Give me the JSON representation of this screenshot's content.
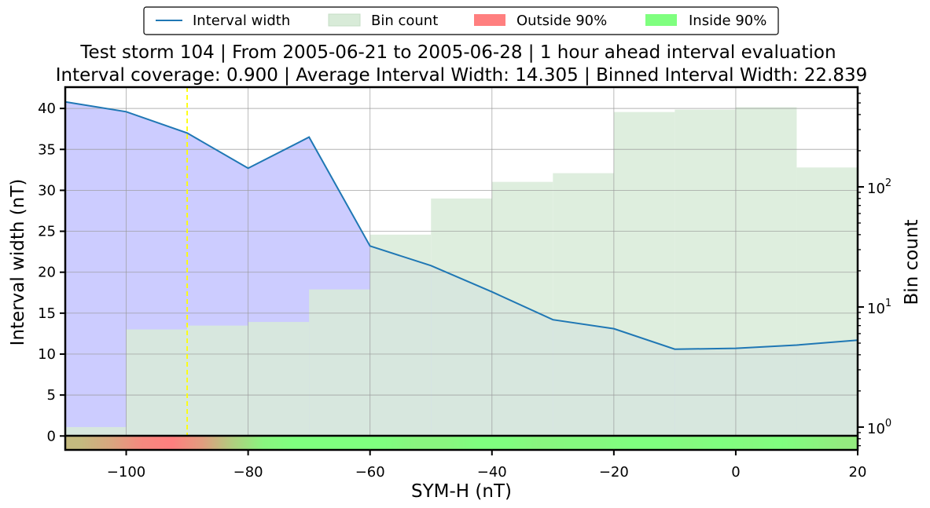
{
  "chart_data": {
    "type": "line",
    "title": "Test storm 104 | From 2005-06-21 to 2005-06-28 | 1 hour ahead interval evaluation",
    "subtitle": "Interval coverage: 0.900 | Average Interval Width: 14.305 | Binned Interval Width: 22.839",
    "xlabel": "SYM-H (nT)",
    "ylabel": "Interval width (nT)",
    "y2label": "Bin count",
    "xlim": [
      -110,
      20
    ],
    "ylim": [
      -1.7,
      42.6
    ],
    "y2lim_log10": [
      -0.19,
      2.83
    ],
    "y2scale": "log",
    "grid": true,
    "legend_position": "top-center",
    "x_ticks": [
      -100,
      -80,
      -60,
      -40,
      -20,
      0,
      20
    ],
    "x_tick_labels": [
      "−100",
      "−80",
      "−60",
      "−40",
      "−20",
      "0",
      "20"
    ],
    "y_ticks": [
      0,
      5,
      10,
      15,
      20,
      25,
      30,
      35,
      40
    ],
    "y_tick_labels": [
      "0",
      "5",
      "10",
      "15",
      "20",
      "25",
      "30",
      "35",
      "40"
    ],
    "y2_ticks": [
      1,
      10,
      100
    ],
    "y2_tick_exponents": [
      "0",
      "1",
      "2"
    ],
    "legend": [
      {
        "label": "Interval width",
        "kind": "line",
        "color": "#1f77b4"
      },
      {
        "label": "Bin count",
        "kind": "patch",
        "color": "#d8ebd8"
      },
      {
        "label": "Outside 90%",
        "kind": "patch",
        "color": "#ff7f7f"
      },
      {
        "label": "Inside 90%",
        "kind": "patch",
        "color": "#7fff7f"
      }
    ],
    "series": [
      {
        "name": "Interval width",
        "color": "#1f77b4",
        "x": [
          -110,
          -100,
          -90,
          -80,
          -70,
          -60,
          -50,
          -40,
          -30,
          -20,
          -10,
          0,
          10,
          20
        ],
        "y": [
          40.8,
          39.6,
          37.0,
          32.7,
          36.5,
          23.2,
          20.8,
          17.6,
          14.2,
          13.1,
          10.6,
          10.7,
          11.1,
          11.7
        ]
      }
    ],
    "bin_counts": {
      "name": "Bin count",
      "color": "#d8ebd8",
      "edges": [
        -110,
        -100,
        -90,
        -80,
        -70,
        -60,
        -50,
        -40,
        -30,
        -20,
        -10,
        0,
        10,
        20
      ],
      "values": [
        1,
        6.5,
        7,
        7.5,
        14,
        40,
        80,
        110,
        130,
        420,
        440,
        460,
        145,
        140
      ]
    },
    "band_fill_color": "#ccccff",
    "reference_line": {
      "x": -90,
      "color": "#ffff00",
      "style": "dashed"
    },
    "coverage_strip": {
      "outside_color": "#ff7f7f",
      "inside_color": "#7fff7f",
      "segments": [
        {
          "x0": -110,
          "x1": -105,
          "coverage": 0.6
        },
        {
          "x0": -105,
          "x1": -100,
          "coverage": 0.5
        },
        {
          "x0": -100,
          "x1": -95,
          "coverage": 0.35
        },
        {
          "x0": -95,
          "x1": -90,
          "coverage": 0.3
        },
        {
          "x0": -90,
          "x1": -85,
          "coverage": 0.45
        },
        {
          "x0": -85,
          "x1": -80,
          "coverage": 0.7
        },
        {
          "x0": -80,
          "x1": -75,
          "coverage": 0.9
        },
        {
          "x0": -75,
          "x1": -70,
          "coverage": 0.95
        },
        {
          "x0": -70,
          "x1": -65,
          "coverage": 0.95
        },
        {
          "x0": -65,
          "x1": -60,
          "coverage": 0.95
        },
        {
          "x0": -60,
          "x1": -55,
          "coverage": 0.95
        },
        {
          "x0": -55,
          "x1": -50,
          "coverage": 0.9
        },
        {
          "x0": -50,
          "x1": -45,
          "coverage": 0.9
        },
        {
          "x0": -45,
          "x1": -40,
          "coverage": 0.95
        },
        {
          "x0": -40,
          "x1": -35,
          "coverage": 0.95
        },
        {
          "x0": -35,
          "x1": -30,
          "coverage": 0.9
        },
        {
          "x0": -30,
          "x1": -25,
          "coverage": 0.92
        },
        {
          "x0": -25,
          "x1": -20,
          "coverage": 0.92
        },
        {
          "x0": -20,
          "x1": -15,
          "coverage": 0.95
        },
        {
          "x0": -15,
          "x1": -10,
          "coverage": 0.95
        },
        {
          "x0": -10,
          "x1": -5,
          "coverage": 0.92
        },
        {
          "x0": -5,
          "x1": 0,
          "coverage": 0.95
        },
        {
          "x0": 0,
          "x1": 5,
          "coverage": 0.92
        },
        {
          "x0": 5,
          "x1": 10,
          "coverage": 0.95
        },
        {
          "x0": 10,
          "x1": 15,
          "coverage": 0.9
        },
        {
          "x0": 15,
          "x1": 20,
          "coverage": 0.85
        }
      ]
    }
  }
}
